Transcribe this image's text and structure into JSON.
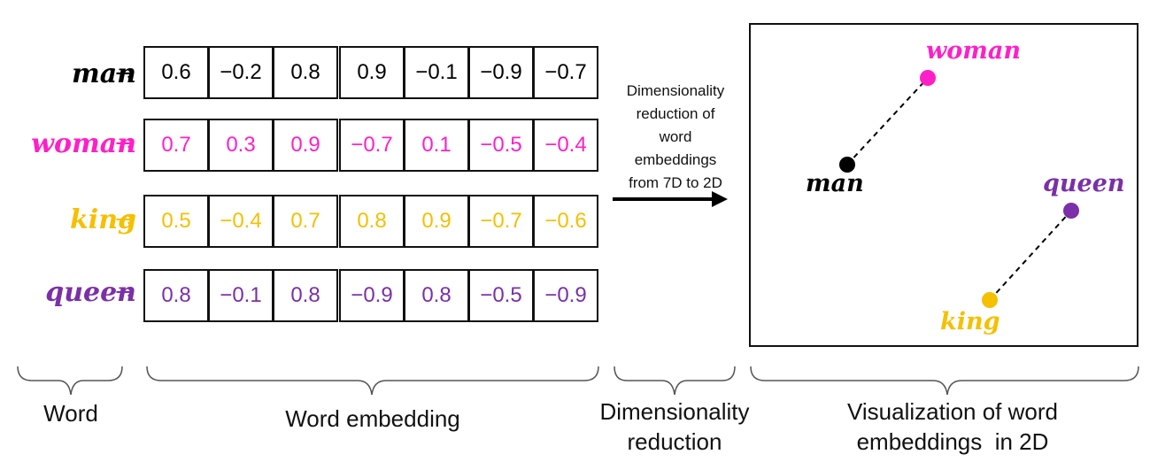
{
  "rows": [
    {
      "word": "man",
      "arrow": "→",
      "color": "#000000",
      "values": [
        "0.6",
        "−0.2",
        "0.8",
        "0.9",
        "−0.1",
        "−0.9",
        "−0.7"
      ]
    },
    {
      "word": "woman",
      "arrow": "→",
      "color": "#ff1fc8",
      "values": [
        "0.7",
        "0.3",
        "0.9",
        "−0.7",
        "0.1",
        "−0.5",
        "−0.4"
      ]
    },
    {
      "word": "king",
      "arrow": "→",
      "color": "#f5c000",
      "values": [
        "0.5",
        "−0.4",
        "0.7",
        "0.8",
        "0.9",
        "−0.7",
        "−0.6"
      ]
    },
    {
      "word": "queen",
      "arrow": "→",
      "color": "#7b2fa8",
      "values": [
        "0.8",
        "−0.1",
        "0.8",
        "−0.9",
        "0.8",
        "−0.5",
        "−0.9"
      ]
    }
  ],
  "reduction": {
    "lines": [
      "Dimensionality",
      "reduction of",
      "word",
      "embeddings",
      "from 7D to 2D"
    ]
  },
  "plot": {
    "points": [
      {
        "label": "woman",
        "color": "#ff1fc8"
      },
      {
        "label": "man",
        "color": "#000000"
      },
      {
        "label": "queen",
        "color": "#7b2fa8"
      },
      {
        "label": "king",
        "color": "#f5c000"
      }
    ],
    "links": [
      [
        "man",
        "woman"
      ],
      [
        "king",
        "queen"
      ]
    ]
  },
  "captions": {
    "word": "Word",
    "embedding": "Word embedding",
    "reduction": [
      "Dimensionality",
      "reduction"
    ],
    "visualization": [
      "Visualization of word",
      "embeddings  in 2D"
    ]
  }
}
